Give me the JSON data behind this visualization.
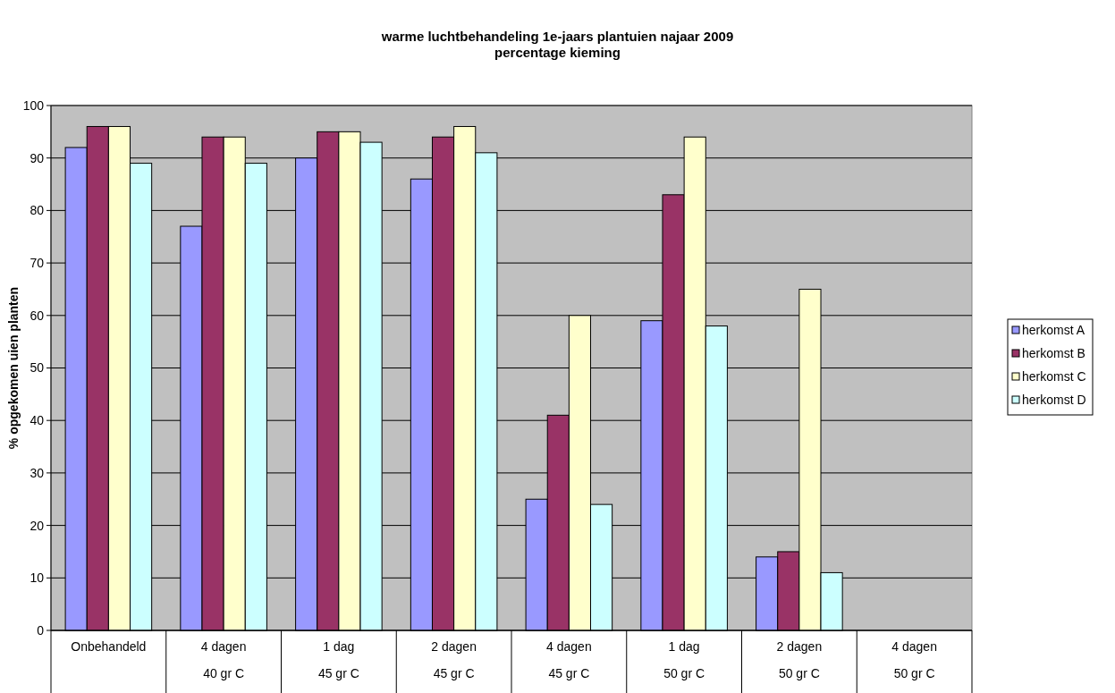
{
  "chart_data": {
    "type": "bar",
    "title": "warme luchtbehandeling 1e-jaars plantuien najaar 2009",
    "subtitle": "percentage kieming",
    "ylabel": "% opgekomen uien planten",
    "categories": [
      "Onbehandeld",
      "4 dagen\n40 gr C",
      "1 dag\n45 gr C",
      "2 dagen\n45 gr C",
      "4 dagen\n45 gr C",
      "1 dag\n50 gr C",
      "2 dagen\n50 gr C",
      "4 dagen\n50 gr C"
    ],
    "series": [
      {
        "name": "herkomst A",
        "color": "#9999ff",
        "values": [
          92,
          77,
          90,
          86,
          25,
          59,
          14,
          null
        ]
      },
      {
        "name": "herkomst B",
        "color": "#993366",
        "values": [
          96,
          94,
          95,
          94,
          41,
          83,
          15,
          null
        ]
      },
      {
        "name": "herkomst C",
        "color": "#ffffcc",
        "values": [
          96,
          94,
          95,
          96,
          60,
          94,
          65,
          null
        ]
      },
      {
        "name": "herkomst D",
        "color": "#ccffff",
        "values": [
          89,
          89,
          93,
          91,
          24,
          58,
          11,
          null
        ]
      }
    ],
    "ylim": [
      0,
      100
    ],
    "yticks": [
      0,
      10,
      20,
      30,
      40,
      50,
      60,
      70,
      80,
      90,
      100
    ],
    "grid": "y",
    "legend": "right"
  }
}
